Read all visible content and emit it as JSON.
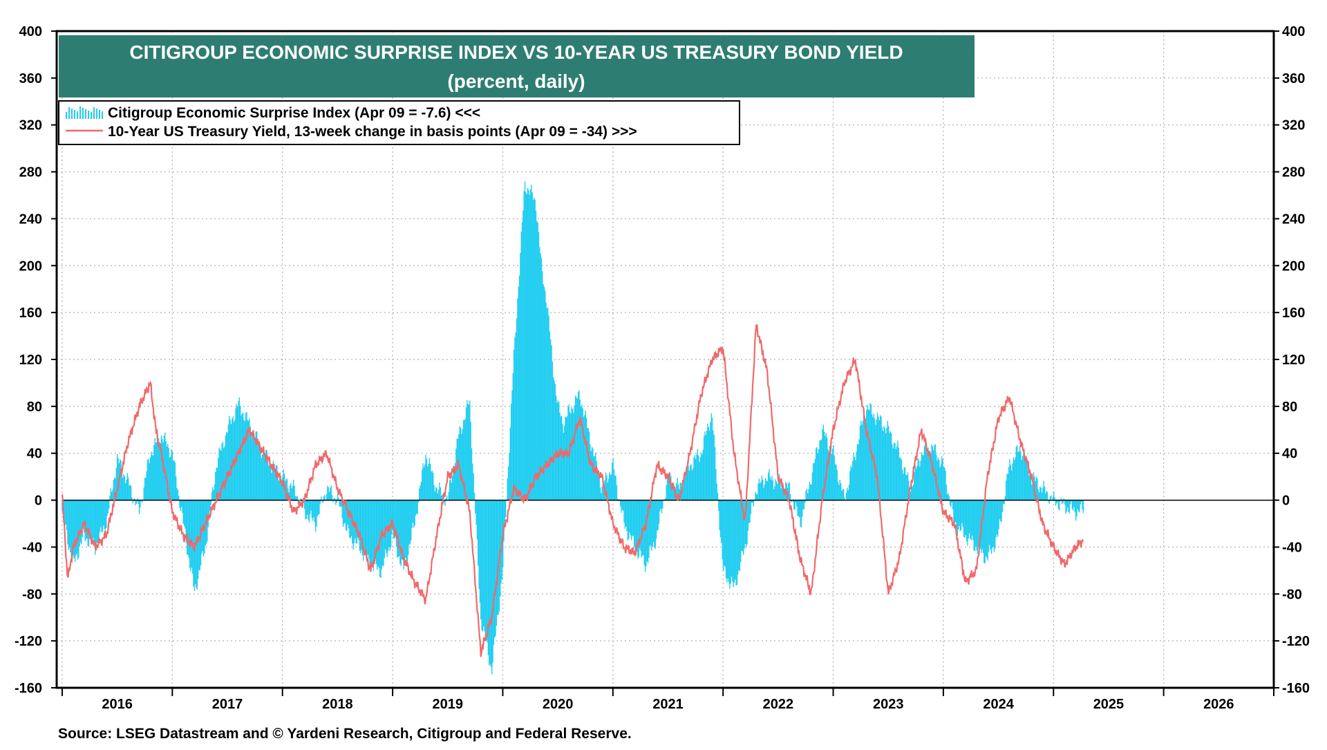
{
  "chart_data": {
    "type": "bar+line",
    "title": "CITIGROUP ECONOMIC SURPRISE INDEX VS 10-YEAR US TREASURY BOND YIELD",
    "subtitle": "(percent, daily)",
    "source": "Source: LSEG Datastream and © Yardeni Research, Citigroup and Federal Reserve.",
    "ylim": [
      -160,
      400
    ],
    "yticks": [
      "400",
      "360",
      "320",
      "280",
      "240",
      "200",
      "160",
      "120",
      "80",
      "40",
      "0",
      "-40",
      "-80",
      "-120",
      "-160"
    ],
    "xlim": [
      2015.95,
      2027.0
    ],
    "x_year_labels": [
      "2016",
      "2017",
      "2018",
      "2019",
      "2020",
      "2021",
      "2022",
      "2023",
      "2024",
      "2025",
      "2026"
    ],
    "grid": true,
    "legend_position": "top-left",
    "colors": {
      "title_bg": "#2e7d72",
      "surprise": "#1fcdf0",
      "treasury": "#f0696a",
      "zero_line": "#000000"
    },
    "series": [
      {
        "name": "Citigroup Economic Surprise Index (Apr 09 = -7.6) <<<",
        "kind": "bars",
        "x": [
          2016.0,
          2016.1,
          2016.2,
          2016.3,
          2016.4,
          2016.5,
          2016.6,
          2016.7,
          2016.8,
          2016.9,
          2017.0,
          2017.1,
          2017.2,
          2017.3,
          2017.4,
          2017.5,
          2017.6,
          2017.7,
          2017.8,
          2017.9,
          2018.0,
          2018.1,
          2018.2,
          2018.3,
          2018.4,
          2018.5,
          2018.6,
          2018.7,
          2018.8,
          2018.9,
          2019.0,
          2019.1,
          2019.2,
          2019.3,
          2019.4,
          2019.5,
          2019.6,
          2019.7,
          2019.8,
          2019.9,
          2020.0,
          2020.1,
          2020.2,
          2020.3,
          2020.35,
          2020.4,
          2020.45,
          2020.5,
          2020.55,
          2020.6,
          2020.7,
          2020.8,
          2020.9,
          2021.0,
          2021.1,
          2021.2,
          2021.3,
          2021.4,
          2021.5,
          2021.6,
          2021.7,
          2021.8,
          2021.9,
          2022.0,
          2022.1,
          2022.2,
          2022.3,
          2022.4,
          2022.5,
          2022.6,
          2022.7,
          2022.8,
          2022.9,
          2023.0,
          2023.1,
          2023.2,
          2023.3,
          2023.4,
          2023.5,
          2023.6,
          2023.7,
          2023.8,
          2023.9,
          2024.0,
          2024.1,
          2024.2,
          2024.3,
          2024.4,
          2024.5,
          2024.6,
          2024.7,
          2024.8,
          2024.9,
          2025.0,
          2025.1,
          2025.2,
          2025.27
        ],
        "values": [
          -10,
          -55,
          -30,
          -40,
          -20,
          35,
          15,
          -10,
          40,
          55,
          40,
          -20,
          -78,
          -40,
          30,
          60,
          82,
          65,
          45,
          30,
          20,
          10,
          -10,
          -20,
          10,
          0,
          -30,
          -40,
          -55,
          -60,
          -30,
          -60,
          -20,
          40,
          10,
          0,
          55,
          85,
          -100,
          -145,
          -60,
          120,
          270,
          255,
          200,
          170,
          120,
          80,
          65,
          75,
          90,
          50,
          10,
          30,
          -20,
          -40,
          -55,
          -30,
          20,
          10,
          30,
          40,
          75,
          -60,
          -75,
          -40,
          10,
          20,
          15,
          10,
          -20,
          20,
          60,
          40,
          0,
          40,
          80,
          70,
          60,
          40,
          10,
          40,
          45,
          30,
          -20,
          -30,
          -40,
          -50,
          -30,
          30,
          45,
          20,
          10,
          0,
          -5,
          -10,
          -8
        ],
        "last_value": -7.6
      },
      {
        "name": "10-Year US Treasury Yield, 13-week change in basis points (Apr 09 = -34) >>>",
        "kind": "line",
        "x": [
          2016.0,
          2016.05,
          2016.1,
          2016.2,
          2016.3,
          2016.4,
          2016.5,
          2016.6,
          2016.7,
          2016.8,
          2016.85,
          2016.9,
          2017.0,
          2017.1,
          2017.2,
          2017.3,
          2017.4,
          2017.5,
          2017.6,
          2017.7,
          2017.8,
          2017.9,
          2018.0,
          2018.1,
          2018.2,
          2018.3,
          2018.4,
          2018.5,
          2018.6,
          2018.7,
          2018.8,
          2018.9,
          2019.0,
          2019.1,
          2019.2,
          2019.3,
          2019.4,
          2019.5,
          2019.6,
          2019.7,
          2019.8,
          2019.9,
          2020.0,
          2020.1,
          2020.2,
          2020.3,
          2020.4,
          2020.5,
          2020.6,
          2020.7,
          2020.8,
          2020.9,
          2021.0,
          2021.1,
          2021.2,
          2021.3,
          2021.4,
          2021.5,
          2021.6,
          2021.7,
          2021.8,
          2021.9,
          2022.0,
          2022.1,
          2022.2,
          2022.3,
          2022.4,
          2022.5,
          2022.6,
          2022.7,
          2022.8,
          2022.9,
          2023.0,
          2023.1,
          2023.2,
          2023.3,
          2023.4,
          2023.5,
          2023.6,
          2023.7,
          2023.8,
          2023.9,
          2024.0,
          2024.1,
          2024.2,
          2024.3,
          2024.4,
          2024.5,
          2024.6,
          2024.7,
          2024.8,
          2024.9,
          2025.0,
          2025.1,
          2025.2,
          2025.27
        ],
        "values": [
          5,
          -68,
          -40,
          -20,
          -40,
          -30,
          10,
          50,
          80,
          100,
          60,
          40,
          -10,
          -30,
          -40,
          -20,
          0,
          20,
          40,
          60,
          45,
          30,
          15,
          -10,
          0,
          30,
          40,
          10,
          -10,
          -30,
          -60,
          -30,
          -20,
          -50,
          -70,
          -85,
          -30,
          20,
          30,
          -10,
          -130,
          -100,
          -30,
          10,
          0,
          20,
          30,
          40,
          40,
          70,
          30,
          20,
          -20,
          -40,
          -45,
          -20,
          30,
          20,
          0,
          40,
          90,
          120,
          130,
          40,
          -20,
          150,
          110,
          20,
          0,
          -50,
          -80,
          0,
          60,
          100,
          120,
          60,
          20,
          -80,
          -50,
          10,
          60,
          30,
          -10,
          -20,
          -70,
          -60,
          20,
          70,
          88,
          50,
          20,
          -20,
          -40,
          -55,
          -40,
          -34
        ],
        "last_value": -34
      }
    ]
  }
}
